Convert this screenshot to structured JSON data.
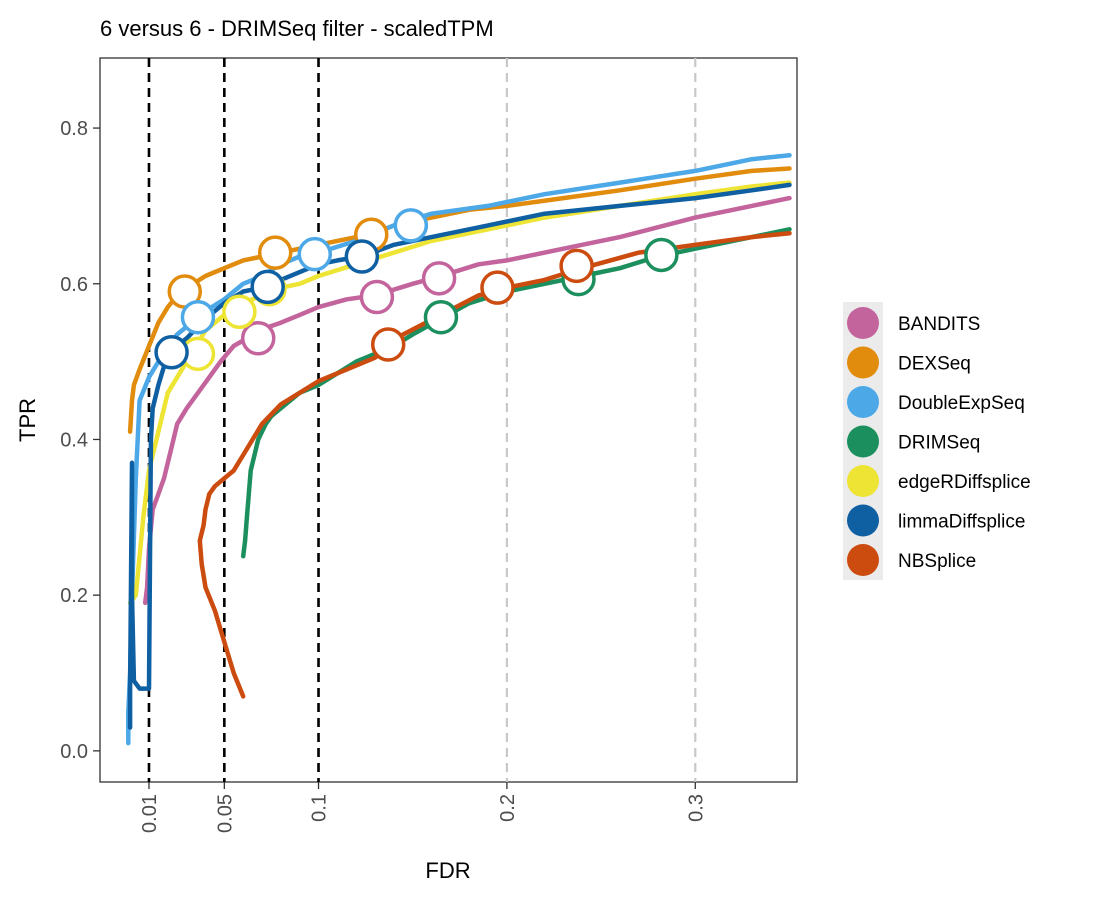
{
  "chart_data": {
    "type": "line",
    "title": "6 versus 6 - DRIMSeq filter - scaledTPM",
    "xlabel": "FDR",
    "ylabel": "TPR",
    "xlim": [
      -0.016,
      0.354
    ],
    "ylim": [
      -0.04,
      0.89
    ],
    "x_ticks": [
      0.01,
      0.05,
      0.1,
      0.2,
      0.3
    ],
    "x_tick_labels": [
      "0.01",
      "0.05",
      "0.1",
      "0.2",
      "0.3"
    ],
    "y_ticks": [
      0.0,
      0.2,
      0.4,
      0.6,
      0.8
    ],
    "y_tick_labels": [
      "0.0",
      "0.2",
      "0.4",
      "0.6",
      "0.8"
    ],
    "grid": false,
    "fdr_threshold_lines": [
      0.01,
      0.05,
      0.1
    ],
    "legend_position": "right",
    "series": [
      {
        "name": "BANDITS",
        "color": "#c3649c",
        "x": [
          0.008,
          0.009,
          0.01,
          0.012,
          0.015,
          0.018,
          0.022,
          0.025,
          0.03,
          0.036,
          0.042,
          0.048,
          0.055,
          0.062,
          0.068,
          0.08,
          0.09,
          0.1,
          0.115,
          0.13,
          0.15,
          0.165,
          0.185,
          0.2,
          0.23,
          0.26,
          0.3,
          0.33,
          0.35
        ],
        "y": [
          0.19,
          0.21,
          0.26,
          0.31,
          0.33,
          0.35,
          0.39,
          0.42,
          0.44,
          0.46,
          0.48,
          0.5,
          0.52,
          0.53,
          0.54,
          0.55,
          0.56,
          0.57,
          0.58,
          0.585,
          0.6,
          0.61,
          0.625,
          0.63,
          0.645,
          0.66,
          0.685,
          0.7,
          0.71
        ],
        "markers": [
          {
            "x": 0.068,
            "y": 0.53
          },
          {
            "x": 0.131,
            "y": 0.583
          },
          {
            "x": 0.164,
            "y": 0.607
          }
        ]
      },
      {
        "name": "DEXSeq",
        "color": "#e28c0e",
        "x": [
          0.0,
          0.001,
          0.002,
          0.005,
          0.01,
          0.015,
          0.02,
          0.025,
          0.03,
          0.04,
          0.05,
          0.06,
          0.07,
          0.08,
          0.09,
          0.1,
          0.11,
          0.12,
          0.13,
          0.14,
          0.16,
          0.18,
          0.2,
          0.23,
          0.26,
          0.3,
          0.33,
          0.35
        ],
        "y": [
          0.41,
          0.45,
          0.47,
          0.49,
          0.52,
          0.55,
          0.57,
          0.585,
          0.595,
          0.61,
          0.62,
          0.63,
          0.635,
          0.64,
          0.645,
          0.65,
          0.655,
          0.66,
          0.665,
          0.675,
          0.685,
          0.695,
          0.7,
          0.71,
          0.72,
          0.735,
          0.745,
          0.748
        ],
        "markers": [
          {
            "x": 0.029,
            "y": 0.59
          },
          {
            "x": 0.077,
            "y": 0.64
          },
          {
            "x": 0.128,
            "y": 0.663
          }
        ]
      },
      {
        "name": "DoubleExpSeq",
        "color": "#4ca8e6",
        "x": [
          -0.001,
          -0.001,
          0.0,
          0.001,
          0.003,
          0.005,
          0.01,
          0.015,
          0.02,
          0.025,
          0.03,
          0.035,
          0.04,
          0.05,
          0.06,
          0.07,
          0.08,
          0.09,
          0.1,
          0.12,
          0.14,
          0.16,
          0.19,
          0.22,
          0.26,
          0.3,
          0.33,
          0.35
        ],
        "y": [
          0.01,
          0.05,
          0.1,
          0.2,
          0.35,
          0.45,
          0.48,
          0.5,
          0.52,
          0.535,
          0.545,
          0.555,
          0.565,
          0.58,
          0.6,
          0.61,
          0.625,
          0.635,
          0.64,
          0.655,
          0.675,
          0.69,
          0.7,
          0.715,
          0.73,
          0.745,
          0.76,
          0.765
        ],
        "markers": [
          {
            "x": 0.036,
            "y": 0.557
          },
          {
            "x": 0.098,
            "y": 0.638
          },
          {
            "x": 0.149,
            "y": 0.675
          }
        ]
      },
      {
        "name": "DRIMSeq",
        "color": "#1c8f5e",
        "x": [
          0.06,
          0.061,
          0.062,
          0.063,
          0.064,
          0.066,
          0.068,
          0.072,
          0.075,
          0.08,
          0.085,
          0.09,
          0.095,
          0.1,
          0.11,
          0.12,
          0.13,
          0.14,
          0.15,
          0.165,
          0.18,
          0.2,
          0.22,
          0.24,
          0.26,
          0.28,
          0.3,
          0.33,
          0.35
        ],
        "y": [
          0.25,
          0.27,
          0.3,
          0.33,
          0.36,
          0.38,
          0.4,
          0.42,
          0.43,
          0.44,
          0.45,
          0.46,
          0.465,
          0.47,
          0.485,
          0.5,
          0.51,
          0.52,
          0.535,
          0.555,
          0.575,
          0.59,
          0.6,
          0.61,
          0.62,
          0.635,
          0.645,
          0.66,
          0.67
        ],
        "markers": [
          {
            "x": 0.165,
            "y": 0.557
          },
          {
            "x": 0.238,
            "y": 0.606
          },
          {
            "x": 0.282,
            "y": 0.637
          }
        ]
      },
      {
        "name": "edgeRDiffsplice",
        "color": "#ede434",
        "x": [
          0.0,
          0.003,
          0.005,
          0.007,
          0.01,
          0.012,
          0.015,
          0.018,
          0.02,
          0.025,
          0.03,
          0.035,
          0.04,
          0.05,
          0.06,
          0.07,
          0.08,
          0.09,
          0.1,
          0.12,
          0.14,
          0.16,
          0.19,
          0.22,
          0.26,
          0.3,
          0.33,
          0.35
        ],
        "y": [
          0.19,
          0.2,
          0.25,
          0.3,
          0.36,
          0.38,
          0.41,
          0.44,
          0.46,
          0.48,
          0.5,
          0.52,
          0.54,
          0.56,
          0.575,
          0.585,
          0.595,
          0.6,
          0.61,
          0.625,
          0.64,
          0.655,
          0.67,
          0.685,
          0.7,
          0.715,
          0.725,
          0.73
        ],
        "markers": [
          {
            "x": 0.036,
            "y": 0.51
          },
          {
            "x": 0.058,
            "y": 0.564
          },
          {
            "x": 0.074,
            "y": 0.593
          }
        ]
      },
      {
        "name": "limmaDiffsplice",
        "color": "#0f5fa3",
        "x": [
          0.0,
          0.0,
          0.001,
          0.001,
          0.002,
          0.005,
          0.008,
          0.01,
          0.011,
          0.012,
          0.015,
          0.02,
          0.025,
          0.03,
          0.04,
          0.05,
          0.06,
          0.07,
          0.08,
          0.09,
          0.1,
          0.11,
          0.123,
          0.14,
          0.16,
          0.19,
          0.22,
          0.26,
          0.3,
          0.33,
          0.35
        ],
        "y": [
          0.03,
          0.08,
          0.37,
          0.2,
          0.09,
          0.08,
          0.08,
          0.08,
          0.4,
          0.44,
          0.47,
          0.51,
          0.52,
          0.53,
          0.555,
          0.575,
          0.59,
          0.595,
          0.605,
          0.615,
          0.625,
          0.63,
          0.635,
          0.65,
          0.66,
          0.675,
          0.69,
          0.7,
          0.71,
          0.72,
          0.727
        ],
        "markers": [
          {
            "x": 0.022,
            "y": 0.512
          },
          {
            "x": 0.073,
            "y": 0.596
          },
          {
            "x": 0.123,
            "y": 0.635
          }
        ]
      },
      {
        "name": "NBSplice",
        "color": "#cc4b0f",
        "x": [
          0.06,
          0.055,
          0.05,
          0.045,
          0.04,
          0.038,
          0.037,
          0.039,
          0.04,
          0.042,
          0.045,
          0.05,
          0.055,
          0.06,
          0.065,
          0.07,
          0.08,
          0.09,
          0.1,
          0.115,
          0.13,
          0.145,
          0.165,
          0.185,
          0.2,
          0.22,
          0.24,
          0.27,
          0.3,
          0.33,
          0.35
        ],
        "y": [
          0.07,
          0.1,
          0.14,
          0.18,
          0.21,
          0.24,
          0.27,
          0.29,
          0.31,
          0.33,
          0.34,
          0.35,
          0.36,
          0.38,
          0.4,
          0.42,
          0.445,
          0.46,
          0.475,
          0.49,
          0.505,
          0.535,
          0.56,
          0.585,
          0.595,
          0.605,
          0.62,
          0.64,
          0.65,
          0.66,
          0.665
        ],
        "markers": [
          {
            "x": 0.137,
            "y": 0.522
          },
          {
            "x": 0.195,
            "y": 0.595
          },
          {
            "x": 0.237,
            "y": 0.623
          }
        ]
      }
    ]
  }
}
